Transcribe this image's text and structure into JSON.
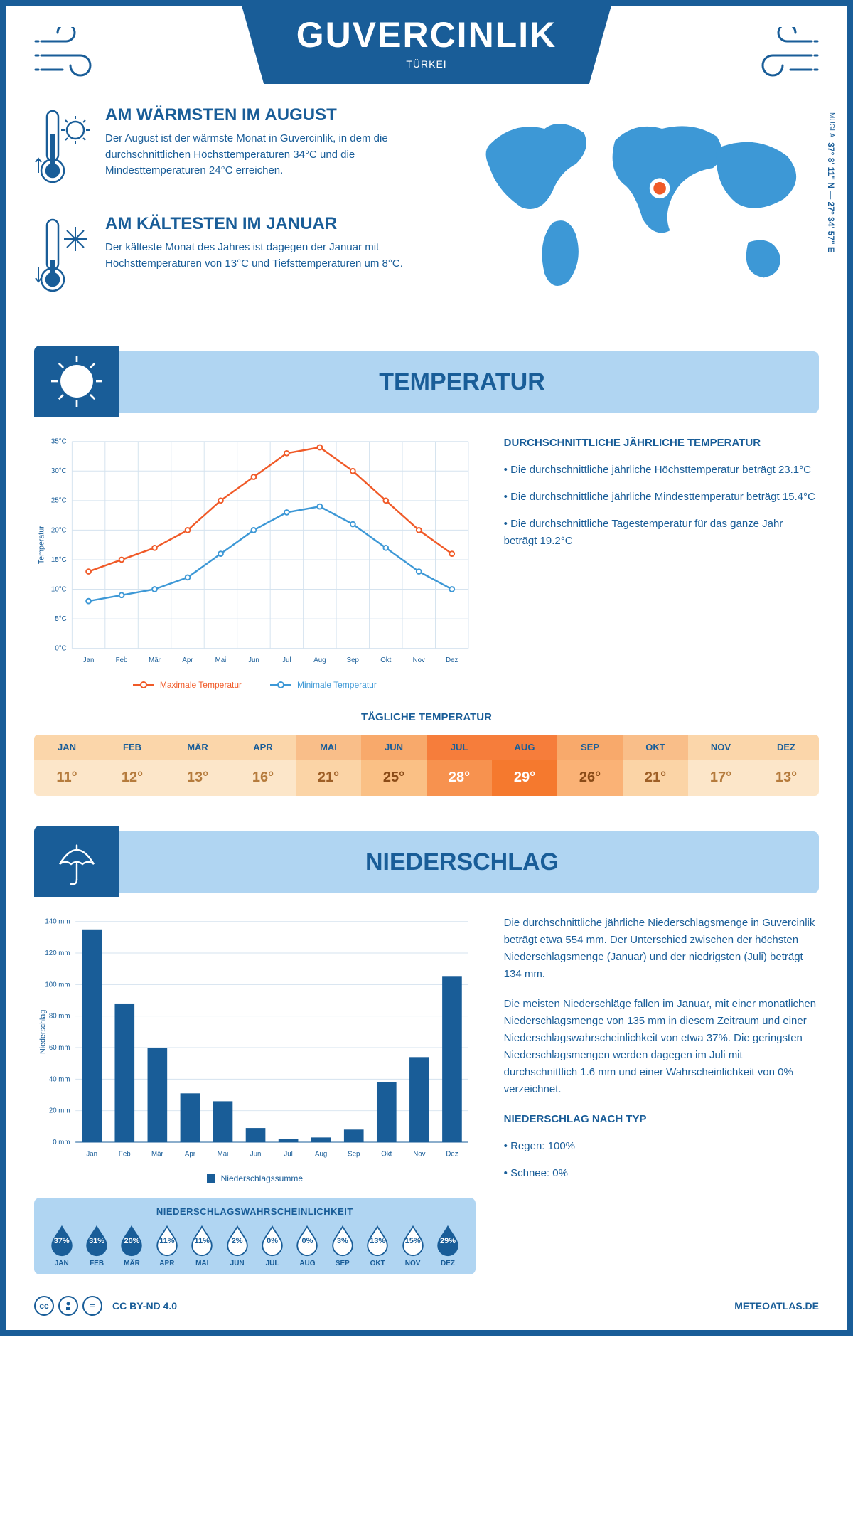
{
  "header": {
    "city": "GUVERCINLIK",
    "country": "TÜRKEI"
  },
  "coords": {
    "region": "MUGLA",
    "lat": "37° 8' 11\" N",
    "lon": "27° 34' 57\" E"
  },
  "warm": {
    "title": "AM WÄRMSTEN IM AUGUST",
    "text": "Der August ist der wärmste Monat in Guvercinlik, in dem die durchschnittlichen Höchsttemperaturen 34°C und die Mindesttemperaturen 24°C erreichen."
  },
  "cold": {
    "title": "AM KÄLTESTEN IM JANUAR",
    "text": "Der kälteste Monat des Jahres ist dagegen der Januar mit Höchsttemperaturen von 13°C und Tiefsttemperaturen um 8°C."
  },
  "section_temp": {
    "title": "TEMPERATUR"
  },
  "temp_chart": {
    "type": "line",
    "months": [
      "Jan",
      "Feb",
      "Mär",
      "Apr",
      "Mai",
      "Jun",
      "Jul",
      "Aug",
      "Sep",
      "Okt",
      "Nov",
      "Dez"
    ],
    "max": [
      13,
      15,
      17,
      20,
      25,
      29,
      33,
      34,
      30,
      25,
      20,
      16
    ],
    "min": [
      8,
      9,
      10,
      12,
      16,
      20,
      23,
      24,
      21,
      17,
      13,
      10
    ],
    "max_color": "#f05a28",
    "min_color": "#3d98d6",
    "ylabel": "Temperatur",
    "ylim": [
      0,
      35
    ],
    "ystep": 5,
    "grid_color": "#d5e3ef",
    "legend_max": "Maximale Temperatur",
    "legend_min": "Minimale Temperatur"
  },
  "temp_text": {
    "title": "DURCHSCHNITTLICHE JÄHRLICHE TEMPERATUR",
    "items": [
      "Die durchschnittliche jährliche Höchsttemperatur beträgt 23.1°C",
      "Die durchschnittliche jährliche Mindesttemperatur beträgt 15.4°C",
      "Die durchschnittliche Tagestemperatur für das ganze Jahr beträgt 19.2°C"
    ]
  },
  "daily_title": "TÄGLICHE TEMPERATUR",
  "daily": {
    "months": [
      "JAN",
      "FEB",
      "MÄR",
      "APR",
      "MAI",
      "JUN",
      "JUL",
      "AUG",
      "SEP",
      "OKT",
      "NOV",
      "DEZ"
    ],
    "values": [
      "11°",
      "12°",
      "13°",
      "16°",
      "21°",
      "25°",
      "28°",
      "29°",
      "26°",
      "21°",
      "17°",
      "13°"
    ],
    "header_colors": [
      "#fbd6aa",
      "#fbd6aa",
      "#fbd6aa",
      "#fbd6aa",
      "#f9be89",
      "#f8a96b",
      "#f67d3b",
      "#f67d3b",
      "#f8a96b",
      "#f9be89",
      "#fbd6aa",
      "#fbd6aa"
    ],
    "value_colors": [
      "#fce6c9",
      "#fce6c9",
      "#fce6c9",
      "#fce6c9",
      "#fbd4a6",
      "#fac085",
      "#f7924f",
      "#f5792e",
      "#fab276",
      "#fbd4a6",
      "#fce6c9",
      "#fce6c9"
    ],
    "text_colors": [
      "#b57b3c",
      "#b57b3c",
      "#b57b3c",
      "#b57b3c",
      "#9e5f26",
      "#8a4b17",
      "#ffffff",
      "#ffffff",
      "#8a4b17",
      "#9e5f26",
      "#b57b3c",
      "#b57b3c"
    ]
  },
  "section_precip": {
    "title": "NIEDERSCHLAG"
  },
  "precip_chart": {
    "type": "bar",
    "months": [
      "Jan",
      "Feb",
      "Mär",
      "Apr",
      "Mai",
      "Jun",
      "Jul",
      "Aug",
      "Sep",
      "Okt",
      "Nov",
      "Dez"
    ],
    "values": [
      135,
      88,
      60,
      31,
      26,
      9,
      2,
      3,
      8,
      38,
      54,
      105
    ],
    "bar_color": "#195d98",
    "ylabel": "Niederschlag",
    "ylim": [
      0,
      140
    ],
    "ystep": 20,
    "grid_color": "#d5e3ef",
    "legend": "Niederschlagssumme"
  },
  "precip_prob": {
    "title": "NIEDERSCHLAGSWAHRSCHEINLICHKEIT",
    "months": [
      "JAN",
      "FEB",
      "MÄR",
      "APR",
      "MAI",
      "JUN",
      "JUL",
      "AUG",
      "SEP",
      "OKT",
      "NOV",
      "DEZ"
    ],
    "values": [
      37,
      31,
      20,
      11,
      11,
      2,
      0,
      0,
      3,
      13,
      15,
      29
    ],
    "fill_color": "#195d98",
    "empty_color": "#ffffff",
    "outline_color": "#195d98"
  },
  "precip_text": {
    "p1": "Die durchschnittliche jährliche Niederschlagsmenge in Guvercinlik beträgt etwa 554 mm. Der Unterschied zwischen der höchsten Niederschlagsmenge (Januar) und der niedrigsten (Juli) beträgt 134 mm.",
    "p2": "Die meisten Niederschläge fallen im Januar, mit einer monatlichen Niederschlagsmenge von 135 mm in diesem Zeitraum und einer Niederschlagswahrscheinlichkeit von etwa 37%. Die geringsten Niederschlagsmengen werden dagegen im Juli mit durchschnittlich 1.6 mm und einer Wahrscheinlichkeit von 0% verzeichnet.",
    "type_title": "NIEDERSCHLAG NACH TYP",
    "types": [
      "Regen: 100%",
      "Schnee: 0%"
    ]
  },
  "footer": {
    "license": "CC BY-ND 4.0",
    "site": "METEOATLAS.DE"
  }
}
